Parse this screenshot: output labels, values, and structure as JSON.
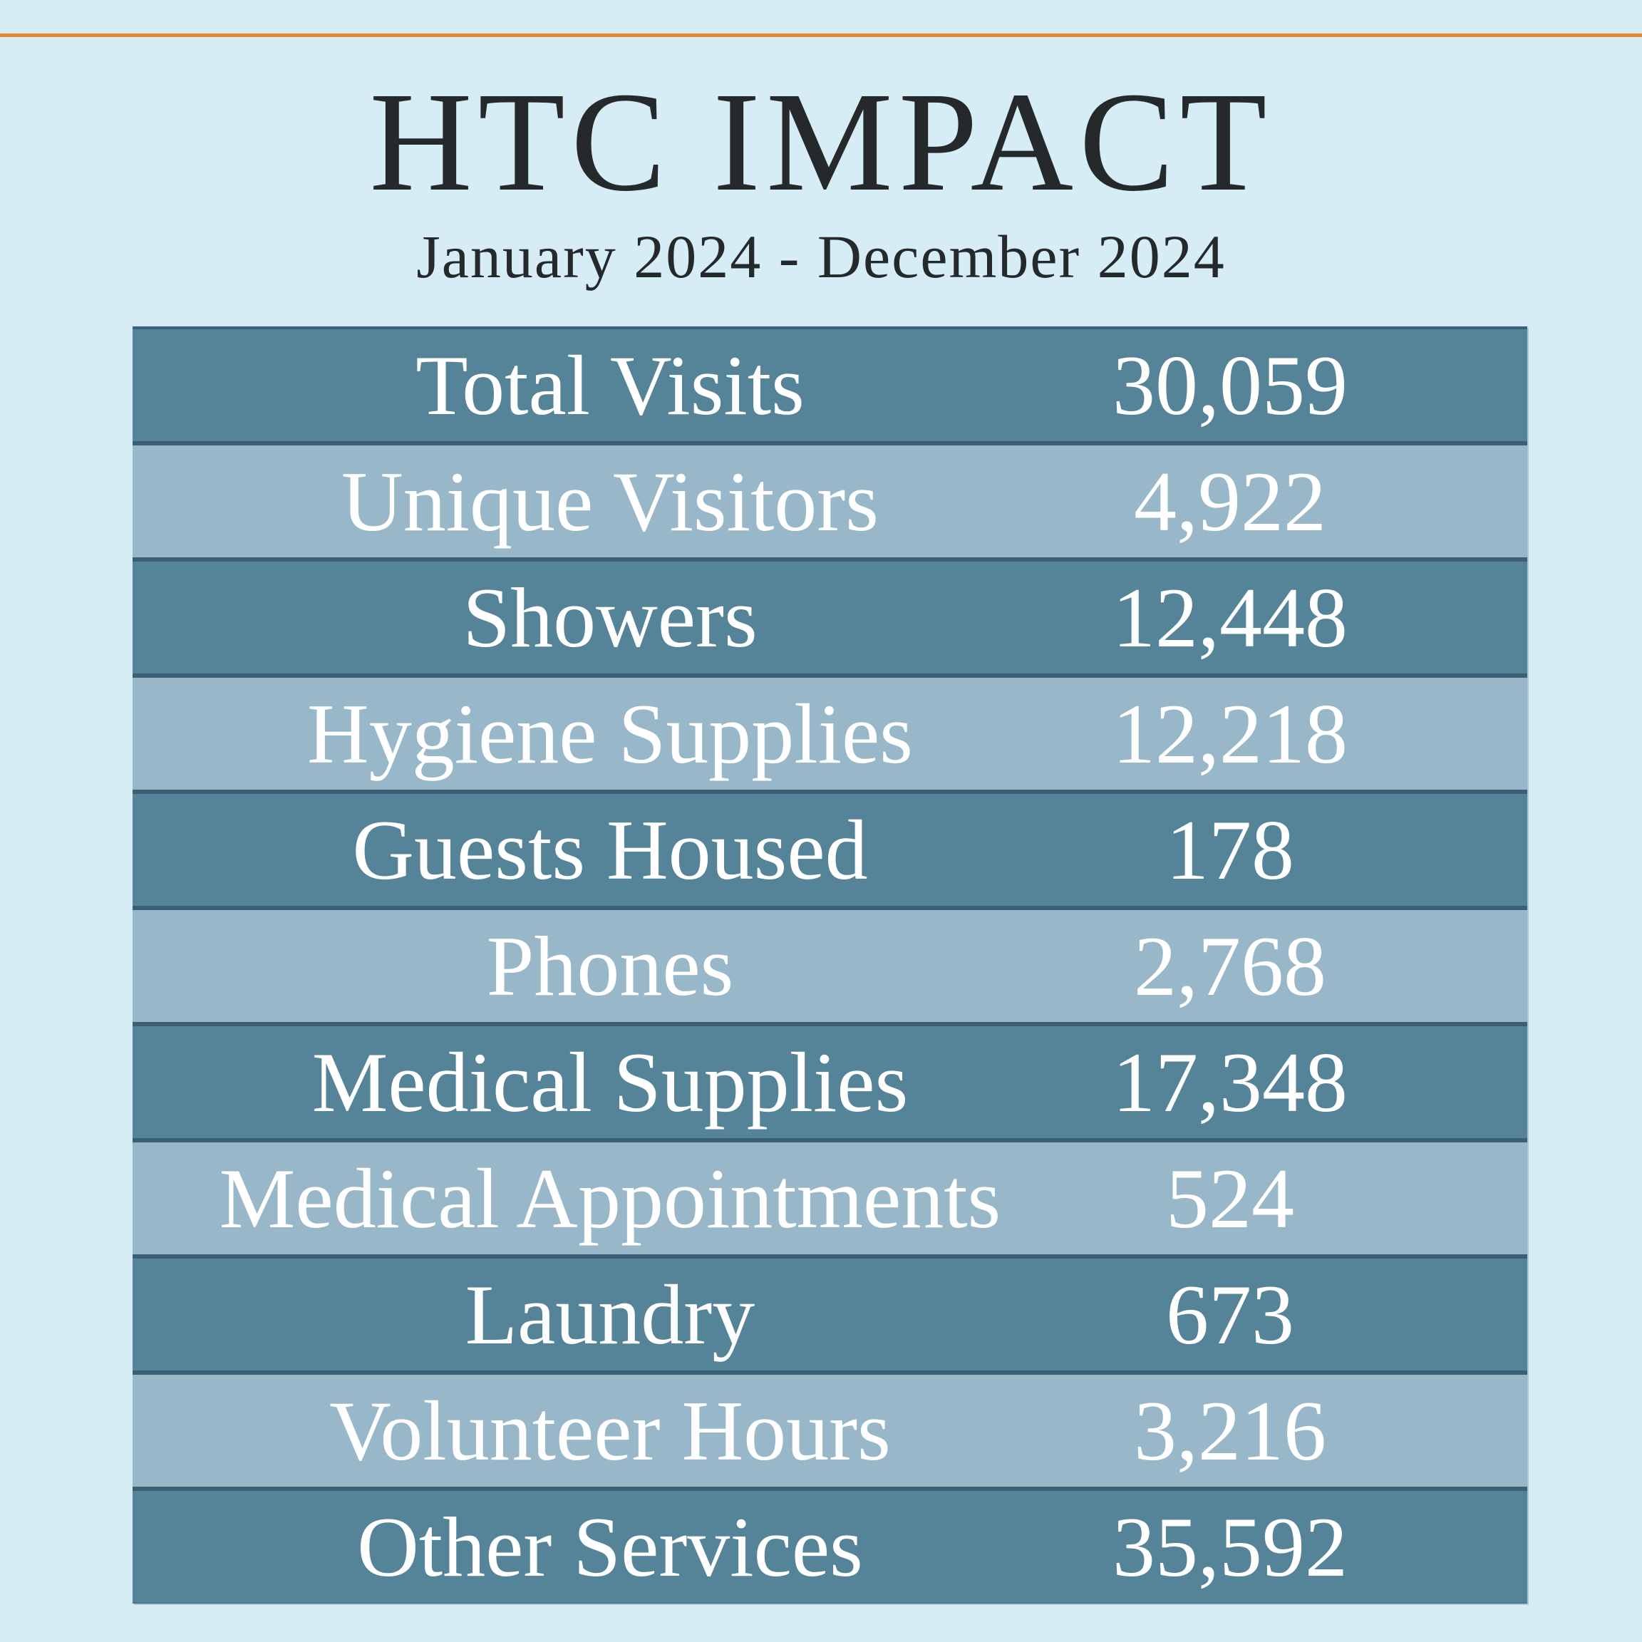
{
  "header": {
    "title": "HTC IMPACT",
    "subtitle": "January 2024 - December 2024"
  },
  "stats": [
    {
      "label": "Total Visits",
      "value": "30,059"
    },
    {
      "label": "Unique Visitors",
      "value": "4,922"
    },
    {
      "label": "Showers",
      "value": "12,448"
    },
    {
      "label": "Hygiene Supplies",
      "value": "12,218"
    },
    {
      "label": "Guests Housed",
      "value": "178"
    },
    {
      "label": "Phones",
      "value": "2,768"
    },
    {
      "label": "Medical Supplies",
      "value": "17,348"
    },
    {
      "label": "Medical Appointments",
      "value": "524"
    },
    {
      "label": "Laundry",
      "value": "673"
    },
    {
      "label": "Volunteer Hours",
      "value": "3,216"
    },
    {
      "label": "Other Services",
      "value": "35,592"
    }
  ],
  "colors": {
    "background": "#d6edf5",
    "accent_rule": "#e8892f",
    "row_dark": "#558499",
    "row_light": "#98b8ca",
    "title_text": "#25292c"
  }
}
